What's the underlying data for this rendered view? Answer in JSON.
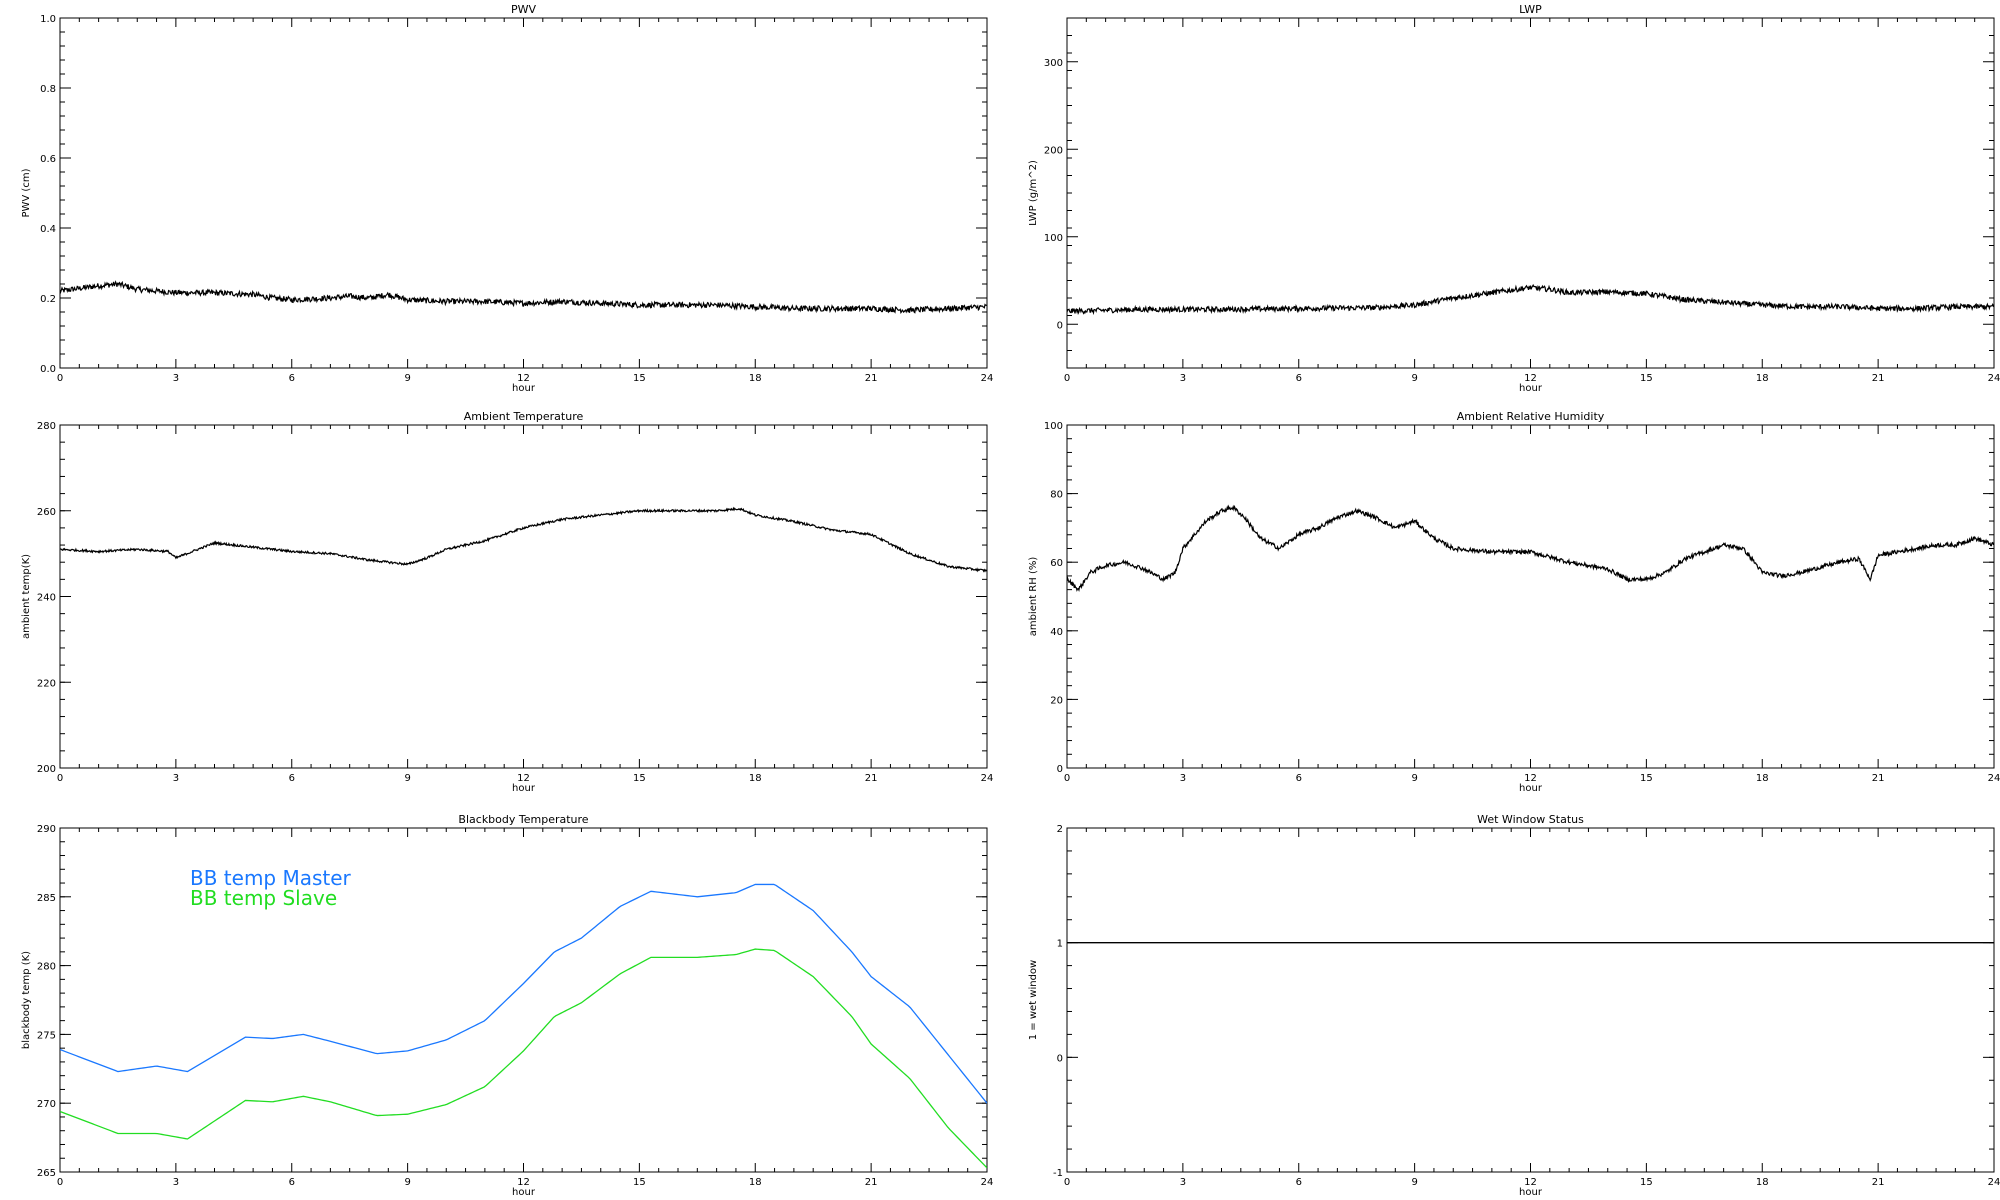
{
  "chart_data": [
    {
      "id": "pwv",
      "type": "line",
      "title": "PWV",
      "xlabel": "hour",
      "ylabel": "PWV (cm)",
      "xlim": [
        0,
        24
      ],
      "ylim": [
        0,
        1.0
      ],
      "xticks": [
        0,
        3,
        6,
        9,
        12,
        15,
        18,
        21,
        24
      ],
      "yticks": [
        0.0,
        0.2,
        0.4,
        0.6,
        0.8,
        1.0
      ],
      "ytick_labels": [
        "0.0",
        "0.2",
        "0.4",
        "0.6",
        "0.8",
        "1.0"
      ],
      "series": [
        {
          "color": "#000000",
          "noise": 0.008,
          "x": [
            0,
            1,
            1.5,
            2,
            3,
            4,
            5,
            5.5,
            6,
            7,
            7.5,
            8,
            8.5,
            9,
            10,
            11,
            12,
            13,
            14,
            15,
            16,
            17,
            18,
            19,
            20,
            21,
            22,
            23,
            24
          ],
          "y": [
            0.22,
            0.235,
            0.24,
            0.225,
            0.215,
            0.215,
            0.21,
            0.2,
            0.195,
            0.2,
            0.205,
            0.2,
            0.21,
            0.195,
            0.19,
            0.19,
            0.185,
            0.19,
            0.185,
            0.18,
            0.18,
            0.18,
            0.175,
            0.17,
            0.17,
            0.17,
            0.165,
            0.17,
            0.175
          ]
        }
      ]
    },
    {
      "id": "lwp",
      "type": "line",
      "title": "LWP",
      "xlabel": "hour",
      "ylabel": "LWP (g/m^2)",
      "xlim": [
        0,
        24
      ],
      "ylim": [
        -50,
        350
      ],
      "xticks": [
        0,
        3,
        6,
        9,
        12,
        15,
        18,
        21,
        24
      ],
      "yticks": [
        0,
        100,
        200,
        300
      ],
      "ytick_labels": [
        "0",
        "100",
        "200",
        "300"
      ],
      "series": [
        {
          "color": "#000000",
          "noise": 3,
          "x": [
            0,
            2,
            4,
            6,
            8,
            9,
            10,
            11,
            12,
            12.5,
            13,
            14,
            15,
            16,
            17,
            18,
            19,
            20,
            21,
            22,
            23,
            24
          ],
          "y": [
            15,
            17,
            17,
            18,
            19,
            22,
            30,
            36,
            42,
            40,
            36,
            37,
            35,
            28,
            25,
            22,
            20,
            20,
            18,
            18,
            20,
            20
          ]
        }
      ]
    },
    {
      "id": "ambient-temp",
      "type": "line",
      "title": "Ambient Temperature",
      "xlabel": "hour",
      "ylabel": "ambient temp(K)",
      "xlim": [
        0,
        24
      ],
      "ylim": [
        200,
        280
      ],
      "xticks": [
        0,
        3,
        6,
        9,
        12,
        15,
        18,
        21,
        24
      ],
      "yticks": [
        200,
        220,
        240,
        260,
        280
      ],
      "ytick_labels": [
        "200",
        "220",
        "240",
        "260",
        "280"
      ],
      "series": [
        {
          "color": "#000000",
          "noise": 0.25,
          "x": [
            0,
            1,
            2,
            2.8,
            3,
            4,
            5,
            6,
            7,
            8,
            9,
            9.5,
            10,
            11,
            12,
            13,
            14,
            15,
            16,
            17,
            17.6,
            18,
            19,
            20,
            21,
            22,
            23,
            24
          ],
          "y": [
            251,
            250.5,
            251,
            250.5,
            249,
            252.5,
            251.5,
            250.5,
            250,
            248.5,
            247.5,
            249,
            251,
            253,
            256,
            258,
            259,
            260,
            260,
            260,
            260.5,
            259,
            257.5,
            255.5,
            254.5,
            250,
            247,
            246
          ]
        }
      ]
    },
    {
      "id": "ambient-rh",
      "type": "line",
      "title": "Ambient Relative Humidity",
      "xlabel": "hour",
      "ylabel": "ambient RH (%)",
      "xlim": [
        0,
        24
      ],
      "ylim": [
        0,
        100
      ],
      "xticks": [
        0,
        3,
        6,
        9,
        12,
        15,
        18,
        21,
        24
      ],
      "yticks": [
        0,
        20,
        40,
        60,
        80,
        100
      ],
      "ytick_labels": [
        "0",
        "20",
        "40",
        "60",
        "80",
        "100"
      ],
      "series": [
        {
          "color": "#000000",
          "noise": 0.6,
          "x": [
            0,
            0.3,
            0.6,
            1,
            1.5,
            2,
            2.5,
            2.8,
            3,
            3.3,
            3.6,
            4,
            4.3,
            4.6,
            5,
            5.5,
            6,
            6.5,
            7,
            7.5,
            8,
            8.5,
            9,
            9.5,
            10,
            11,
            12,
            13,
            14,
            14.5,
            15,
            15.5,
            16,
            16.5,
            17,
            17.5,
            17.8,
            18,
            18.5,
            19,
            20,
            20.5,
            20.8,
            21,
            21.5,
            22,
            22.5,
            23,
            23.5,
            24
          ],
          "y": [
            55,
            52,
            57,
            59,
            60,
            58,
            55,
            57,
            64,
            68,
            72,
            75,
            76,
            73,
            67,
            64,
            68,
            70,
            73,
            75,
            73,
            70,
            72,
            67,
            64,
            63,
            63,
            60,
            58,
            55,
            55,
            57,
            61,
            63,
            65,
            64,
            60,
            57,
            56,
            57,
            60,
            61,
            55,
            62,
            63,
            64,
            65,
            65,
            67,
            65
          ]
        }
      ]
    },
    {
      "id": "blackbody-temp",
      "type": "line",
      "title": "Blackbody Temperature",
      "xlabel": "hour",
      "ylabel": "blackbody temp (K)",
      "xlim": [
        0,
        24
      ],
      "ylim": [
        265,
        290
      ],
      "xticks": [
        0,
        3,
        6,
        9,
        12,
        15,
        18,
        21,
        24
      ],
      "yticks": [
        265,
        270,
        275,
        280,
        285,
        290
      ],
      "ytick_labels": [
        "265",
        "270",
        "275",
        "280",
        "285",
        "290"
      ],
      "legend_position": "top-left",
      "series": [
        {
          "name": "BB temp Master",
          "color": "#1a78ff",
          "noise": 0,
          "x": [
            0,
            1.5,
            2.5,
            3.3,
            4.8,
            5.5,
            6.3,
            7,
            8.2,
            9,
            10,
            11,
            12,
            12.8,
            13.5,
            14.5,
            15.3,
            16.5,
            17.5,
            18,
            18.5,
            19.5,
            20.5,
            21,
            22,
            23,
            24
          ],
          "y": [
            273.9,
            272.3,
            272.7,
            272.3,
            274.8,
            274.7,
            275,
            274.5,
            273.6,
            273.8,
            274.6,
            276,
            278.7,
            281,
            282,
            284.3,
            285.4,
            285,
            285.3,
            285.9,
            285.9,
            284,
            281,
            279.2,
            277,
            273.5,
            270
          ]
        },
        {
          "name": "BB temp Slave",
          "color": "#22dd22",
          "noise": 0,
          "x": [
            0,
            1.5,
            2.5,
            3.3,
            4.8,
            5.5,
            6.3,
            7,
            8.2,
            9,
            10,
            11,
            12,
            12.8,
            13.5,
            14.5,
            15.3,
            16.5,
            17.5,
            18,
            18.5,
            19.5,
            20.5,
            21,
            22,
            23,
            24
          ],
          "y": [
            269.4,
            267.8,
            267.8,
            267.4,
            270.2,
            270.1,
            270.5,
            270.1,
            269.1,
            269.2,
            269.9,
            271.2,
            273.8,
            276.3,
            277.3,
            279.4,
            280.6,
            280.6,
            280.8,
            281.2,
            281.1,
            279.2,
            276.3,
            274.3,
            271.8,
            268.2,
            265.3
          ]
        }
      ]
    },
    {
      "id": "wet-window",
      "type": "line",
      "title": "Wet Window Status",
      "xlabel": "hour",
      "ylabel": "1 = wet window",
      "xlim": [
        0,
        24
      ],
      "ylim": [
        -1,
        2
      ],
      "xticks": [
        0,
        3,
        6,
        9,
        12,
        15,
        18,
        21,
        24
      ],
      "yticks": [
        -1,
        0,
        1,
        2
      ],
      "ytick_labels": [
        "-1",
        "0",
        "1",
        "2"
      ],
      "series": [
        {
          "color": "#000000",
          "noise": 0,
          "x": [
            0,
            24
          ],
          "y": [
            1,
            1
          ]
        }
      ]
    }
  ]
}
